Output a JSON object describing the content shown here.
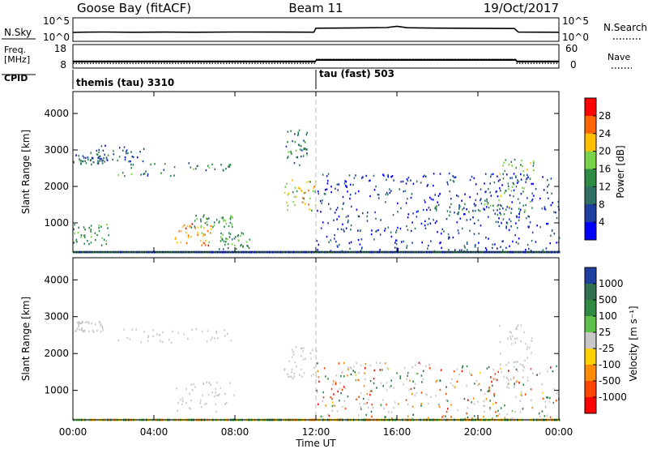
{
  "header": {
    "site": "Goose Bay (fitACF)",
    "beam": "Beam 11",
    "date": "19/Oct/2017"
  },
  "panels": {
    "nsky": {
      "left_label": "N.Sky",
      "right_label": "N.Search",
      "left_ticks": [
        "10^5",
        "10^0"
      ],
      "right_ticks": [
        "10^5",
        "10^0"
      ],
      "profile": [
        [
          0,
          9.2
        ],
        [
          0.5,
          9.4
        ],
        [
          1.5,
          9.6
        ],
        [
          3,
          9.3
        ],
        [
          4.5,
          9.5
        ],
        [
          6,
          9.3
        ],
        [
          8,
          9.6
        ],
        [
          10,
          9.5
        ],
        [
          11.9,
          9.4
        ],
        [
          12,
          13.5
        ],
        [
          14,
          13.8
        ],
        [
          15.5,
          14.2
        ],
        [
          16,
          15.5
        ],
        [
          16.5,
          14.0
        ],
        [
          18,
          13.6
        ],
        [
          20,
          13.4
        ],
        [
          21.8,
          13.2
        ],
        [
          22,
          9.5
        ],
        [
          24,
          9.3
        ]
      ]
    },
    "freq": {
      "left_label_1": "Freq.",
      "left_label_2": "[MHz]",
      "right_label": "Nave",
      "left_ticks": [
        "18",
        "8"
      ],
      "right_ticks": [
        "60",
        "0"
      ],
      "segments": [
        {
          "from": 0,
          "to": 12,
          "freq": 10.8,
          "nave": 12
        },
        {
          "from": 12,
          "to": 21.9,
          "freq": 11.5,
          "nave": 22
        },
        {
          "from": 21.9,
          "to": 24,
          "freq": 10.8,
          "nave": 12
        }
      ]
    },
    "cpid": {
      "label": "CPID",
      "programs": [
        {
          "from": 0,
          "to": 12,
          "text": "themis (tau) 3310"
        },
        {
          "from": 12,
          "to": 24,
          "text": "tau (fast) 503"
        }
      ]
    }
  },
  "axes": {
    "x_label": "Time UT",
    "x_ticks": [
      "00:00",
      "04:00",
      "08:00",
      "12:00",
      "16:00",
      "20:00",
      "00:00"
    ],
    "x_tick_hours": [
      0,
      4,
      8,
      12,
      16,
      20,
      24
    ],
    "y_label": "Slant Range [km]",
    "y_ticks": [
      1000,
      2000,
      3000,
      4000
    ],
    "y_range": [
      200,
      4600
    ]
  },
  "colorbars": {
    "power": {
      "label": "Power [dB]",
      "ticks": [
        "28",
        "24",
        "20",
        "16",
        "12",
        "8",
        "4"
      ],
      "colors": [
        "#ff0000",
        "#ff6600",
        "#ffc000",
        "#7ad14a",
        "#2f8a44",
        "#2f6f64",
        "#1f3fa0",
        "#0000ff"
      ]
    },
    "velocity": {
      "label": "Velocity [m s⁻¹]",
      "ticks": [
        "1000",
        "500",
        "100",
        "25",
        "-25",
        "-100",
        "-500",
        "-1000"
      ],
      "colors": [
        "#1f3fa0",
        "#2f7050",
        "#2f8a44",
        "#5ec04a",
        "#c8c8c8",
        "#ffd000",
        "#ff8c00",
        "#ff4500",
        "#ff0000"
      ]
    }
  },
  "chart_data": [
    {
      "type": "heatmap",
      "title": "Power",
      "xlabel": "Time UT",
      "ylabel": "Slant Range [km]",
      "xlim": [
        0,
        24
      ],
      "ylim": [
        200,
        4600
      ],
      "colorbar_label": "Power [dB]",
      "colorbar_ticks": [
        4,
        8,
        12,
        16,
        20,
        24,
        28
      ],
      "features": [
        {
          "t_from": 0.0,
          "t_to": 1.5,
          "r_from": 2600,
          "r_to": 2900,
          "db": 8
        },
        {
          "t_from": 0.5,
          "t_to": 3.5,
          "r_from": 2700,
          "r_to": 3150,
          "db": 6
        },
        {
          "t_from": 2.2,
          "t_to": 7.8,
          "r_from": 2300,
          "r_to": 2700,
          "db": 10
        },
        {
          "t_from": 0.0,
          "t_to": 1.8,
          "r_from": 400,
          "r_to": 1000,
          "db": 12
        },
        {
          "t_from": 5.0,
          "t_to": 6.8,
          "r_from": 400,
          "r_to": 1000,
          "db": 22
        },
        {
          "t_from": 5.8,
          "t_to": 8.0,
          "r_from": 900,
          "r_to": 1250,
          "db": 12
        },
        {
          "t_from": 7.2,
          "t_to": 8.8,
          "r_from": 300,
          "r_to": 800,
          "db": 12
        },
        {
          "t_from": 10.4,
          "t_to": 12.0,
          "r_from": 1350,
          "r_to": 2200,
          "db": 18
        },
        {
          "t_from": 10.5,
          "t_to": 11.6,
          "r_from": 2600,
          "r_to": 3600,
          "db": 10
        },
        {
          "t_from": 12.0,
          "t_to": 24.0,
          "r_from": 250,
          "r_to": 2400,
          "db": 5
        },
        {
          "t_from": 17.5,
          "t_to": 21.5,
          "r_from": 1200,
          "r_to": 1550,
          "db": 10
        },
        {
          "t_from": 21.0,
          "t_to": 22.8,
          "r_from": 1300,
          "r_to": 2800,
          "db": 14
        }
      ]
    },
    {
      "type": "heatmap",
      "title": "Velocity",
      "xlabel": "Time UT",
      "ylabel": "Slant Range [km]",
      "xlim": [
        0,
        24
      ],
      "ylim": [
        200,
        4600
      ],
      "colorbar_label": "Velocity [m s⁻¹]",
      "colorbar_ticks": [
        -1000,
        -500,
        -100,
        -25,
        25,
        100,
        500,
        1000
      ],
      "features": [
        {
          "t_from": 0.0,
          "t_to": 1.5,
          "r_from": 2600,
          "r_to": 2900,
          "v": 0
        },
        {
          "t_from": 2.2,
          "t_to": 7.8,
          "r_from": 2300,
          "r_to": 2700,
          "v": 0
        },
        {
          "t_from": 5.0,
          "t_to": 8.0,
          "r_from": 400,
          "r_to": 1250,
          "v": 0
        },
        {
          "t_from": 10.4,
          "t_to": 12.0,
          "r_from": 1350,
          "r_to": 2200,
          "v": 0
        },
        {
          "t_from": 12.0,
          "t_to": 24.0,
          "r_from": 250,
          "r_to": 1800,
          "v": -150
        },
        {
          "t_from": 21.0,
          "t_to": 22.8,
          "r_from": 1300,
          "r_to": 2800,
          "v": 0
        }
      ]
    }
  ]
}
